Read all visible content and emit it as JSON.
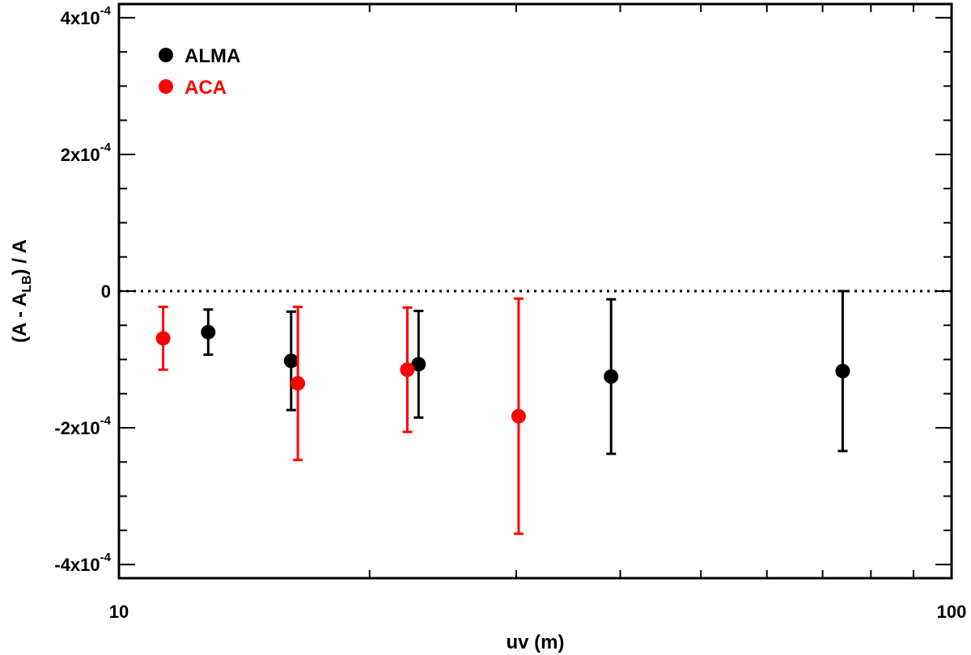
{
  "chart_data": {
    "type": "scatter",
    "title": "",
    "xlabel": "uv (m)",
    "ylabel": {
      "main": "(A - A",
      "sub": "LB",
      "tail": ") / A"
    },
    "xscale": "log",
    "xlim": [
      10,
      100
    ],
    "ylim": [
      -0.00042,
      0.00042
    ],
    "x_ticks": [
      {
        "value": 10,
        "label": "10"
      },
      {
        "value": 100,
        "label": "100"
      }
    ],
    "y_ticks": [
      {
        "value": 0.0004,
        "label": {
          "base": "4x10",
          "exp": "-4"
        }
      },
      {
        "value": 0.0002,
        "label": {
          "base": "2x10",
          "exp": "-4"
        }
      },
      {
        "value": 0,
        "label": {
          "base": "0",
          "exp": ""
        }
      },
      {
        "value": -0.0002,
        "label": {
          "base": "-2x10",
          "exp": "-4"
        }
      },
      {
        "value": -0.0004,
        "label": {
          "base": "-4x10",
          "exp": "-4"
        }
      }
    ],
    "reference_line": {
      "y": 0,
      "style": "dotted"
    },
    "legend_position": "top-left",
    "series": [
      {
        "name": "ALMA",
        "color": "#000000",
        "points": [
          {
            "x": 12.8,
            "y": -6e-05,
            "err": 3.3e-05
          },
          {
            "x": 16.1,
            "y": -0.000102,
            "err": 7.2e-05
          },
          {
            "x": 22.9,
            "y": -0.000107,
            "err": 7.8e-05
          },
          {
            "x": 39.0,
            "y": -0.000125,
            "err": 0.000113
          },
          {
            "x": 74.0,
            "y": -0.000117,
            "err": 0.000117
          }
        ]
      },
      {
        "name": "ACA",
        "color": "#ff0000",
        "points": [
          {
            "x": 11.3,
            "y": -6.9e-05,
            "err": 4.6e-05
          },
          {
            "x": 16.4,
            "y": -0.000135,
            "err": 0.000112
          },
          {
            "x": 22.2,
            "y": -0.000115,
            "err": 9.1e-05
          },
          {
            "x": 30.2,
            "y": -0.000183,
            "err": 0.000172
          }
        ]
      }
    ]
  }
}
